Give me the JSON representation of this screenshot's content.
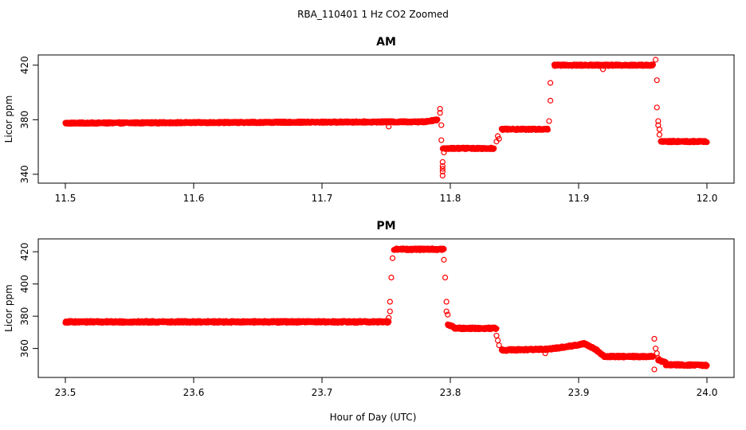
{
  "figure": {
    "title": "RBA_110401  1 Hz CO2 Zoomed",
    "xlabel": "Hour of Day (UTC)"
  },
  "colors": {
    "points": "#ff0000",
    "axes": "#000000",
    "background": "#ffffff"
  },
  "chart_data": [
    {
      "type": "scatter",
      "title": "AM",
      "xlabel": "",
      "ylabel": "Licor ppm",
      "xlim": [
        11.5,
        12.0
      ],
      "ylim": [
        337,
        424
      ],
      "xticks": [
        "11.5",
        "11.6",
        "11.7",
        "11.8",
        "11.9",
        "12.0"
      ],
      "xtick_values": [
        11.5,
        11.6,
        11.7,
        11.8,
        11.9,
        12.0
      ],
      "yticks": [
        "340",
        "380",
        "420"
      ],
      "ytick_values": [
        340,
        380,
        420
      ],
      "grid": false,
      "series": [
        {
          "marker": "open-circle",
          "segments": [
            {
              "x0": 11.5,
              "x1": 11.78,
              "y0": 377.5,
              "y1": 378.5
            },
            {
              "x0": 11.78,
              "x1": 11.79,
              "y0": 378.5,
              "y1": 380
            },
            {
              "x0": 11.794,
              "x1": 11.834,
              "y0": 359,
              "y1": 359
            },
            {
              "x0": 11.84,
              "x1": 11.876,
              "y0": 373,
              "y1": 373
            },
            {
              "x0": 11.881,
              "x1": 11.958,
              "y0": 420,
              "y1": 420
            },
            {
              "x0": 11.964,
              "x1": 12.0,
              "y0": 364,
              "y1": 364
            }
          ],
          "outliers": [
            [
              11.752,
              375
            ],
            [
              11.792,
              388
            ],
            [
              11.792,
              385
            ],
            [
              11.793,
              376
            ],
            [
              11.793,
              365
            ],
            [
              11.794,
              349
            ],
            [
              11.794,
              346
            ],
            [
              11.794,
              344
            ],
            [
              11.794,
              342
            ],
            [
              11.794,
              339
            ],
            [
              11.795,
              356
            ],
            [
              11.836,
              364
            ],
            [
              11.837,
              368
            ],
            [
              11.838,
              366
            ],
            [
              11.877,
              379
            ],
            [
              11.878,
              394
            ],
            [
              11.878,
              407
            ],
            [
              11.919,
              417
            ],
            [
              11.96,
              424
            ],
            [
              11.961,
              409
            ],
            [
              11.961,
              389
            ],
            [
              11.962,
              379
            ],
            [
              11.962,
              376
            ],
            [
              11.963,
              373
            ],
            [
              11.963,
              369
            ]
          ]
        }
      ]
    },
    {
      "type": "scatter",
      "title": "PM",
      "xlabel": "",
      "ylabel": "Licor ppm",
      "xlim": [
        23.5,
        24.0
      ],
      "ylim": [
        345,
        425
      ],
      "xticks": [
        "23.5",
        "23.6",
        "23.7",
        "23.8",
        "23.9",
        "24.0"
      ],
      "xtick_values": [
        23.5,
        23.6,
        23.7,
        23.8,
        23.9,
        24.0
      ],
      "yticks": [
        "360",
        "380",
        "400",
        "420"
      ],
      "ytick_values": [
        360,
        380,
        400,
        420
      ],
      "grid": false,
      "series": [
        {
          "marker": "open-circle",
          "segments": [
            {
              "x0": 23.5,
              "x1": 23.752,
              "y0": 376.5,
              "y1": 376.5
            },
            {
              "x0": 23.756,
              "x1": 23.795,
              "y0": 421.5,
              "y1": 421.5
            },
            {
              "x0": 23.798,
              "x1": 23.803,
              "y0": 375,
              "y1": 373
            },
            {
              "x0": 23.803,
              "x1": 23.836,
              "y0": 372.5,
              "y1": 372.5
            },
            {
              "x0": 23.84,
              "x1": 23.875,
              "y0": 359,
              "y1": 359.5
            },
            {
              "x0": 23.875,
              "x1": 23.89,
              "y0": 359.5,
              "y1": 361
            },
            {
              "x0": 23.89,
              "x1": 23.905,
              "y0": 361,
              "y1": 363
            },
            {
              "x0": 23.905,
              "x1": 23.914,
              "y0": 363,
              "y1": 359
            },
            {
              "x0": 23.914,
              "x1": 23.92,
              "y0": 359,
              "y1": 355
            },
            {
              "x0": 23.92,
              "x1": 23.958,
              "y0": 355,
              "y1": 355
            },
            {
              "x0": 23.962,
              "x1": 23.968,
              "y0": 353,
              "y1": 351
            },
            {
              "x0": 23.968,
              "x1": 24.0,
              "y0": 350,
              "y1": 349.5
            }
          ],
          "outliers": [
            [
              23.752,
              379
            ],
            [
              23.753,
              383
            ],
            [
              23.753,
              389
            ],
            [
              23.754,
              404
            ],
            [
              23.755,
              416
            ],
            [
              23.795,
              415
            ],
            [
              23.796,
              404
            ],
            [
              23.797,
              389
            ],
            [
              23.797,
              383
            ],
            [
              23.798,
              381
            ],
            [
              23.836,
              368
            ],
            [
              23.837,
              365
            ],
            [
              23.838,
              362
            ],
            [
              23.874,
              357
            ],
            [
              23.959,
              347
            ],
            [
              23.959,
              366
            ],
            [
              23.96,
              360
            ],
            [
              23.961,
              357
            ],
            [
              23.962,
              354
            ]
          ]
        }
      ]
    }
  ]
}
